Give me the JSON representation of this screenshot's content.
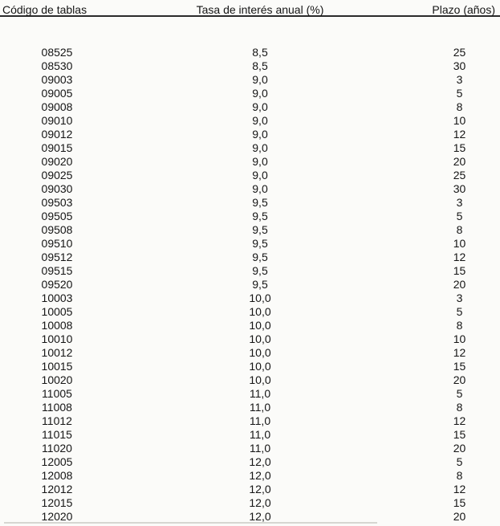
{
  "page": {
    "background_color": "#fbfbf9",
    "text_color": "#151515",
    "rule_color": "#2b2b2b"
  },
  "chart_data": {
    "type": "table",
    "columns": [
      "Código de tablas",
      "Tasa de interés anual (%)",
      "Plazo (años)"
    ],
    "rows": [
      [
        "08525",
        "8,5",
        "25"
      ],
      [
        "08530",
        "8,5",
        "30"
      ],
      [
        "09003",
        "9,0",
        "3"
      ],
      [
        "09005",
        "9,0",
        "5"
      ],
      [
        "09008",
        "9,0",
        "8"
      ],
      [
        "09010",
        "9,0",
        "10"
      ],
      [
        "09012",
        "9,0",
        "12"
      ],
      [
        "09015",
        "9,0",
        "15"
      ],
      [
        "09020",
        "9,0",
        "20"
      ],
      [
        "09025",
        "9,0",
        "25"
      ],
      [
        "09030",
        "9,0",
        "30"
      ],
      [
        "09503",
        "9,5",
        "3"
      ],
      [
        "09505",
        "9,5",
        "5"
      ],
      [
        "09508",
        "9,5",
        "8"
      ],
      [
        "09510",
        "9,5",
        "10"
      ],
      [
        "09512",
        "9,5",
        "12"
      ],
      [
        "09515",
        "9,5",
        "15"
      ],
      [
        "09520",
        "9,5",
        "20"
      ],
      [
        "10003",
        "10,0",
        "3"
      ],
      [
        "10005",
        "10,0",
        "5"
      ],
      [
        "10008",
        "10,0",
        "8"
      ],
      [
        "10010",
        "10,0",
        "10"
      ],
      [
        "10012",
        "10,0",
        "12"
      ],
      [
        "10015",
        "10,0",
        "15"
      ],
      [
        "10020",
        "10,0",
        "20"
      ],
      [
        "11005",
        "11,0",
        "5"
      ],
      [
        "11008",
        "11,0",
        "8"
      ],
      [
        "11012",
        "11,0",
        "12"
      ],
      [
        "11015",
        "11,0",
        "15"
      ],
      [
        "11020",
        "11,0",
        "20"
      ],
      [
        "12005",
        "12,0",
        "5"
      ],
      [
        "12008",
        "12,0",
        "8"
      ],
      [
        "12012",
        "12,0",
        "12"
      ],
      [
        "12015",
        "12,0",
        "15"
      ],
      [
        "12020",
        "12,0",
        "20"
      ]
    ]
  }
}
